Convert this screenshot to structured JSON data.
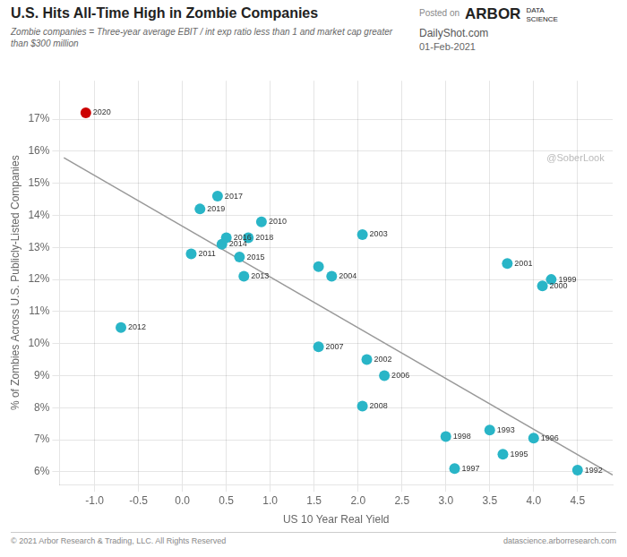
{
  "chart_data": {
    "type": "scatter",
    "title": "U.S. Hits All-Time High in Zombie Companies",
    "subtitle": "Zombie companies = Three-year average EBIT / int exp ratio less than 1 and market cap greater than $300 million",
    "xlabel": "US 10 Year Real Yield",
    "ylabel": "% of Zombies Across U.S. Publicly-Listed Companies",
    "header_texts": [
      "Posted on",
      "ARBOR",
      "DATA\nSCIENCE"
    ],
    "sources": [
      "DailyShot.com",
      "01-Feb-2021"
    ],
    "watermark": "@SoberLook",
    "footer": [
      "© 2021 Arbor Research & Trading, LLC. All Rights Reserved",
      "datascience.arborresearch.com"
    ],
    "series": [
      {
        "type": "line",
        "x": [
          -1.35,
          4.9
        ],
        "values": [
          0.158,
          0.059
        ],
        "color": "#999999"
      },
      {
        "type": "scatter",
        "x": [
          -1.1,
          -0.7,
          0.1,
          0.2,
          0.4,
          0.45,
          0.5,
          0.65,
          0.75,
          0.7,
          0.9,
          1.55,
          1.7,
          2.05,
          2.1,
          2.3,
          2.05,
          3.0,
          3.1,
          3.5,
          3.65,
          3.7,
          4.0,
          4.2,
          4.1,
          4.5,
          1.55
        ],
        "values": [
          0.172,
          0.105,
          0.128,
          0.142,
          0.146,
          0.131,
          0.133,
          0.127,
          0.133,
          0.121,
          0.138,
          0.099,
          0.121,
          0.134,
          0.095,
          0.09,
          0.0805,
          0.071,
          0.061,
          0.073,
          0.0655,
          0.125,
          0.0705,
          0.12,
          0.118,
          0.0605,
          0.124
        ],
        "colors": [
          "#cc0000",
          "#29b5c7",
          "#29b5c7",
          "#29b5c7",
          "#29b5c7",
          "#29b5c7",
          "#29b5c7",
          "#29b5c7",
          "#29b5c7",
          "#29b5c7",
          "#29b5c7",
          "#29b5c7",
          "#29b5c7",
          "#29b5c7",
          "#29b5c7",
          "#29b5c7",
          "#29b5c7",
          "#29b5c7",
          "#29b5c7",
          "#29b5c7",
          "#29b5c7",
          "#29b5c7",
          "#29b5c7",
          "#29b5c7",
          "#29b5c7",
          "#29b5c7",
          "#29b5c7"
        ]
      }
    ],
    "annotations": [
      {
        "text": "2020",
        "x": -1.1,
        "y": 0.172
      },
      {
        "text": "2012",
        "x": -0.7,
        "y": 0.105
      },
      {
        "text": "2011",
        "x": 0.1,
        "y": 0.128
      },
      {
        "text": "2019",
        "x": 0.2,
        "y": 0.142
      },
      {
        "text": "2017",
        "x": 0.4,
        "y": 0.146
      },
      {
        "text": "2014",
        "x": 0.45,
        "y": 0.131
      },
      {
        "text": "2016",
        "x": 0.5,
        "y": 0.133
      },
      {
        "text": "2015",
        "x": 0.65,
        "y": 0.127
      },
      {
        "text": "2018",
        "x": 0.75,
        "y": 0.133
      },
      {
        "text": "2013",
        "x": 0.7,
        "y": 0.121
      },
      {
        "text": "2010",
        "x": 0.9,
        "y": 0.138
      },
      {
        "text": "2007",
        "x": 1.55,
        "y": 0.099
      },
      {
        "text": "2004",
        "x": 1.7,
        "y": 0.121
      },
      {
        "text": "2003",
        "x": 2.05,
        "y": 0.134
      },
      {
        "text": "2002",
        "x": 2.1,
        "y": 0.095
      },
      {
        "text": "2006",
        "x": 2.3,
        "y": 0.09
      },
      {
        "text": "2008",
        "x": 2.05,
        "y": 0.0805
      },
      {
        "text": "1998",
        "x": 3.0,
        "y": 0.071
      },
      {
        "text": "1997",
        "x": 3.1,
        "y": 0.061
      },
      {
        "text": "1993",
        "x": 3.5,
        "y": 0.073
      },
      {
        "text": "1995",
        "x": 3.65,
        "y": 0.0655
      },
      {
        "text": "2001",
        "x": 3.7,
        "y": 0.125
      },
      {
        "text": "1996",
        "x": 4.0,
        "y": 0.0705
      },
      {
        "text": "1999",
        "x": 4.2,
        "y": 0.12
      },
      {
        "text": "2000",
        "x": 4.1,
        "y": 0.118
      },
      {
        "text": "1992",
        "x": 4.5,
        "y": 0.0605
      }
    ],
    "xlim": [
      -1.4,
      4.9
    ],
    "xticks": [
      {
        "value": -1,
        "label": "-1.0"
      },
      -0.5,
      {
        "value": 0,
        "label": "0.0"
      },
      0.5,
      {
        "value": 1,
        "label": "1.0"
      },
      1.5,
      {
        "value": 2,
        "label": "2.0"
      },
      2.5,
      {
        "value": 3,
        "label": "3.0"
      },
      3.5,
      {
        "value": 4,
        "label": "4.0"
      },
      4.5
    ],
    "ylim": [
      0.056,
      0.182
    ],
    "yticks": [
      {
        "value": 0.06,
        "label": "6%"
      },
      {
        "value": 0.07,
        "label": "7%"
      },
      {
        "value": 0.08,
        "label": "8%"
      },
      {
        "value": 0.09,
        "label": "9%"
      },
      {
        "value": 0.1,
        "label": "10%"
      },
      {
        "value": 0.11,
        "label": "11%"
      },
      {
        "value": 0.12,
        "label": "12%"
      },
      {
        "value": 0.13,
        "label": "13%"
      },
      {
        "value": 0.14,
        "label": "14%"
      },
      {
        "value": 0.15,
        "label": "15%"
      },
      {
        "value": 0.16,
        "label": "16%"
      },
      {
        "value": 0.17,
        "label": "17%"
      }
    ],
    "grid": true
  }
}
